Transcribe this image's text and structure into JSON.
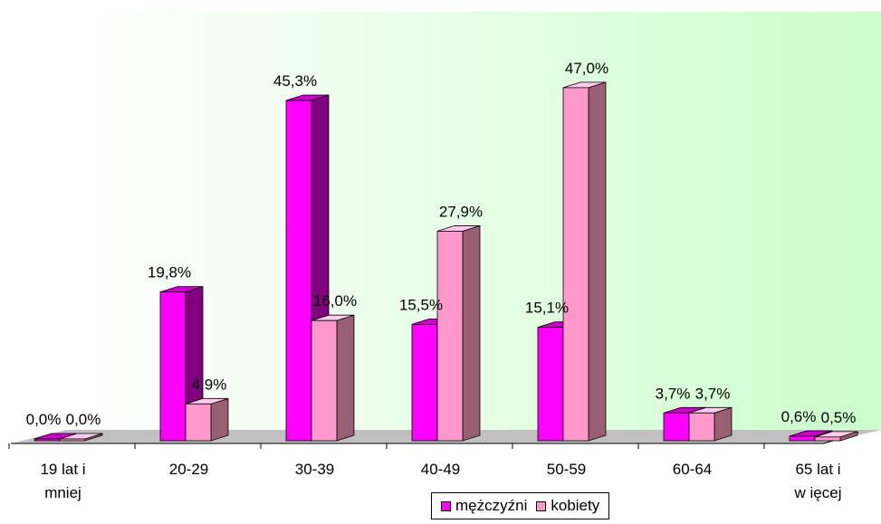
{
  "chart_data": {
    "type": "bar",
    "categories": [
      "19 lat i mniej",
      "20-29",
      "30-39",
      "40-49",
      "50-59",
      "60-64",
      "65 lat i więcej"
    ],
    "category_lines": [
      [
        "19 lat i",
        "mniej"
      ],
      [
        "20-29"
      ],
      [
        "30-39"
      ],
      [
        "40-49"
      ],
      [
        "50-59"
      ],
      [
        "60-64"
      ],
      [
        "65 lat i",
        "w ięcej"
      ]
    ],
    "series": [
      {
        "name": "mężczyźni",
        "values": [
          0.0,
          19.8,
          45.3,
          15.5,
          15.1,
          3.7,
          0.6
        ],
        "labels": [
          "0,0%",
          "19,8%",
          "45,3%",
          "15,5%",
          "15,1%",
          "3,7%",
          "0,6%"
        ],
        "color": "#ff00ff"
      },
      {
        "name": "kobiety",
        "values": [
          0.0,
          4.9,
          16.0,
          27.9,
          47.0,
          3.7,
          0.5
        ],
        "labels": [
          "0,0%",
          "4,9%",
          "16,0%",
          "27,9%",
          "47,0%",
          "3,7%",
          "0,5%"
        ],
        "color": "#ff99cc"
      }
    ],
    "ylim": [
      0,
      50
    ],
    "grid": false,
    "legend": "bottom",
    "title": "",
    "xlabel": "",
    "ylabel": ""
  }
}
